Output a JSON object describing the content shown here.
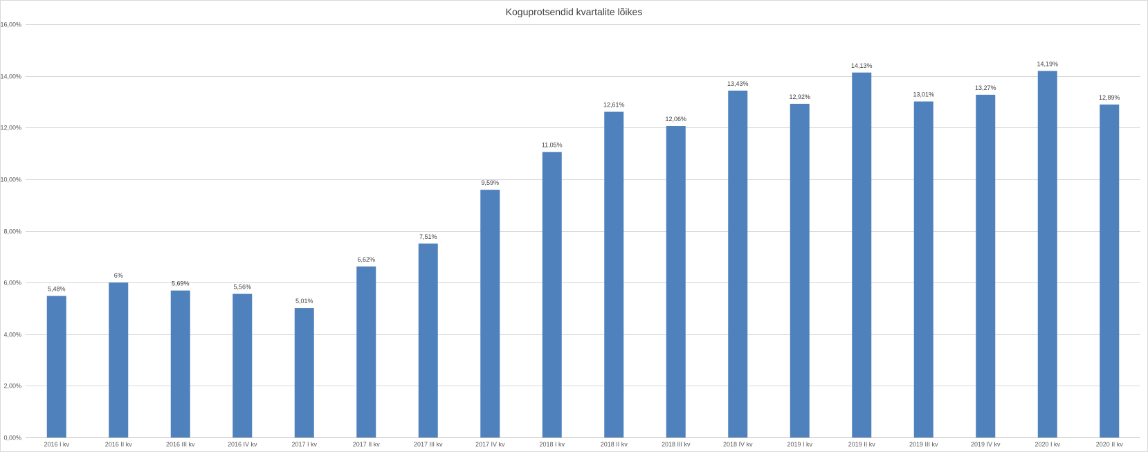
{
  "chart_data": {
    "type": "bar",
    "title": "Koguprotsendid kvartalite lõikes",
    "xlabel": "",
    "ylabel": "",
    "ylim": [
      0,
      16
    ],
    "y_ticks": [
      "0,00%",
      "2,00%",
      "4,00%",
      "6,00%",
      "8,00%",
      "10,00%",
      "12,00%",
      "14,00%",
      "16,00%"
    ],
    "y_tick_values": [
      0,
      2,
      4,
      6,
      8,
      10,
      12,
      14,
      16
    ],
    "grid": true,
    "legend": "none",
    "bar_color": "#4f81bd",
    "categories": [
      "2016 I kv",
      "2016 II kv",
      "2016 III kv",
      "2016 IV kv",
      "2017 I kv",
      "2017 II kv",
      "2017 III kv",
      "2017 IV kv",
      "2018 I kv",
      "2018 II kv",
      "2018 III kv",
      "2018 IV kv",
      "2019 I kv",
      "2019 II kv",
      "2019 III kv",
      "2019 IV kv",
      "2020 I kv",
      "2020 II kv"
    ],
    "values": [
      5.48,
      6,
      5.69,
      5.56,
      5.01,
      6.62,
      7.51,
      9.59,
      11.05,
      12.61,
      12.06,
      13.43,
      12.92,
      14.13,
      13.01,
      13.27,
      14.19,
      12.89
    ],
    "data_labels": [
      "5,48%",
      "6%",
      "5,69%",
      "5,56%",
      "5,01%",
      "6,62%",
      "7,51%",
      "9,59%",
      "11,05%",
      "12,61%",
      "12,06%",
      "13,43%",
      "12,92%",
      "14,13%",
      "13,01%",
      "13,27%",
      "14,19%",
      "12,89%"
    ]
  }
}
